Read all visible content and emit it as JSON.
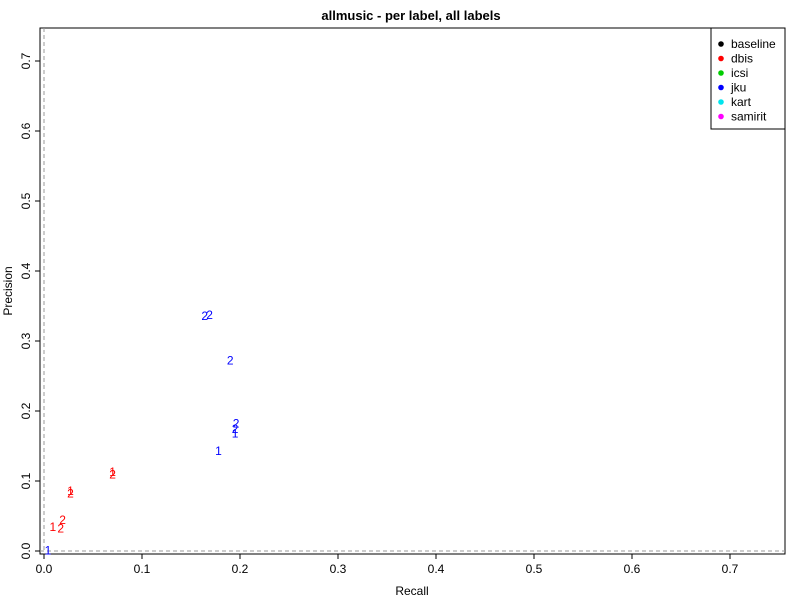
{
  "chart_data": {
    "type": "scatter",
    "title": "allmusic - per label, all labels",
    "xlabel": "Recall",
    "ylabel": "Precision",
    "xlim": [
      0,
      0.75
    ],
    "ylim": [
      0,
      0.75
    ],
    "x_ticks": [
      0.0,
      0.1,
      0.2,
      0.3,
      0.4,
      0.5,
      0.6,
      0.7
    ],
    "y_ticks": [
      0.0,
      0.1,
      0.2,
      0.3,
      0.4,
      0.5,
      0.6,
      0.7
    ],
    "x_tick_labels": [
      "0.0",
      "0.1",
      "0.2",
      "0.3",
      "0.4",
      "0.5",
      "0.6",
      "0.7"
    ],
    "y_tick_labels": [
      "0.0",
      "0.1",
      "0.2",
      "0.3",
      "0.4",
      "0.5",
      "0.6",
      "0.7"
    ],
    "reference_lines": {
      "x": 0.0,
      "y": 0.0,
      "style": "dashed",
      "color": "#999999"
    },
    "legend": {
      "placement": "top-right",
      "marker": "filled-circle"
    },
    "series": [
      {
        "name": "baseline",
        "color": "#000000",
        "points": []
      },
      {
        "name": "dbis",
        "color": "#ff0000",
        "points": [
          {
            "x": 0.009,
            "y": 0.034,
            "label": "1"
          },
          {
            "x": 0.017,
            "y": 0.032,
            "label": "2"
          },
          {
            "x": 0.019,
            "y": 0.044,
            "label": "2"
          },
          {
            "x": 0.027,
            "y": 0.086,
            "label": "1"
          },
          {
            "x": 0.027,
            "y": 0.082,
            "label": "2"
          },
          {
            "x": 0.07,
            "y": 0.113,
            "label": "1"
          },
          {
            "x": 0.07,
            "y": 0.109,
            "label": "2"
          }
        ]
      },
      {
        "name": "icsi",
        "color": "#00cd00",
        "points": []
      },
      {
        "name": "jku",
        "color": "#0000ff",
        "points": [
          {
            "x": 0.004,
            "y": 0.001,
            "label": "1"
          },
          {
            "x": 0.164,
            "y": 0.336,
            "label": "2"
          },
          {
            "x": 0.169,
            "y": 0.337,
            "label": "2"
          },
          {
            "x": 0.178,
            "y": 0.143,
            "label": "1"
          },
          {
            "x": 0.19,
            "y": 0.272,
            "label": "2"
          },
          {
            "x": 0.195,
            "y": 0.168,
            "label": "1"
          },
          {
            "x": 0.195,
            "y": 0.174,
            "label": "2"
          },
          {
            "x": 0.196,
            "y": 0.182,
            "label": "2"
          }
        ]
      },
      {
        "name": "kart",
        "color": "#00e5ee",
        "points": []
      },
      {
        "name": "samirit",
        "color": "#ff00ff",
        "points": []
      }
    ]
  }
}
